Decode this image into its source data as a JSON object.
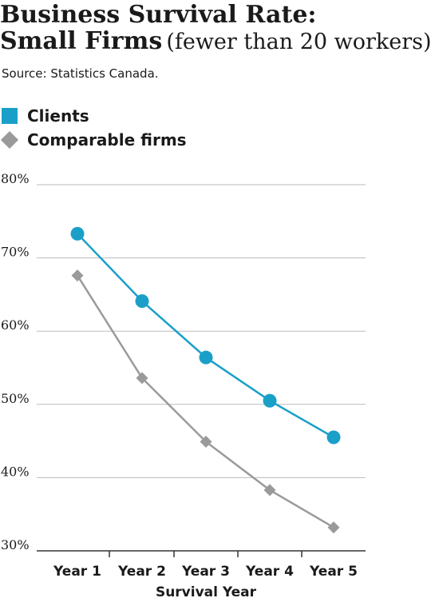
{
  "header": {
    "title_line1": "Business Survival Rate:",
    "title_line2_bold": "Small Firms",
    "title_line2_light": "(fewer than 20 workers)",
    "source": "Source: Statistics Canada."
  },
  "colors": {
    "clients": "#1aa0c8",
    "comparable": "#9a9a9a",
    "grid": "#bbbbbb",
    "axis": "#333333"
  },
  "chart_data": {
    "type": "line",
    "title": "Business Survival Rate: Small Firms (fewer than 20 workers)",
    "xlabel": "Survival Year",
    "ylabel": "",
    "categories": [
      "Year 1",
      "Year 2",
      "Year 3",
      "Year 4",
      "Year 5"
    ],
    "ylim": [
      30,
      80
    ],
    "yticks": [
      "80%",
      "70%",
      "60%",
      "50%",
      "40%",
      "30%"
    ],
    "grid": true,
    "legend_position": "top-left",
    "series": [
      {
        "name": "Clients",
        "marker": "circle",
        "color": "#1aa0c8",
        "values": [
          73.3,
          64.1,
          56.4,
          50.5,
          45.5
        ]
      },
      {
        "name": "Comparable firms",
        "marker": "diamond",
        "color": "#9a9a9a",
        "values": [
          67.6,
          53.6,
          44.9,
          38.3,
          33.2
        ]
      }
    ]
  }
}
